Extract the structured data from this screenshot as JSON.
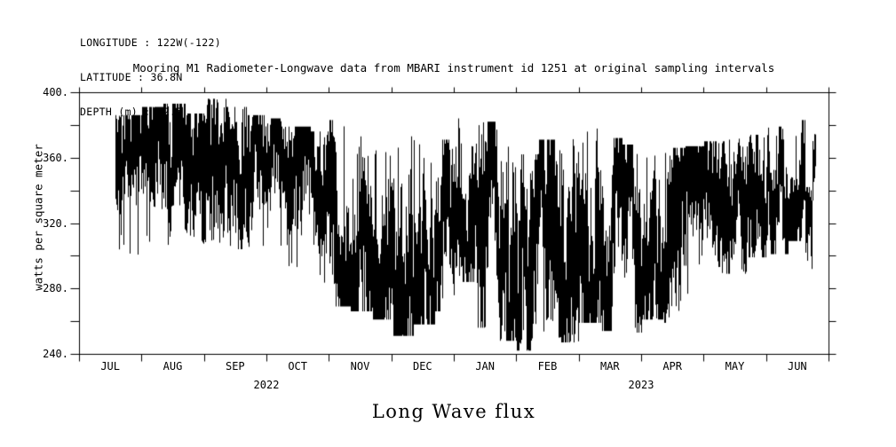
{
  "header": {
    "lines": [
      "LONGITUDE : 122W(-122)",
      "LATITUDE : 36.8N",
      "DEPTH (m) : -2.5"
    ]
  },
  "chart_data": {
    "type": "line",
    "title": "Mooring M1 Radiometer-Longwave data from MBARI instrument id 1251 at original sampling intervals",
    "ylabel": "watts per square meter",
    "caption": "Long Wave flux",
    "ylim": [
      240,
      400
    ],
    "y_major_step": 40,
    "y_minor_step": 20,
    "y_tick_labels": [
      "240.",
      "280.",
      "320.",
      "360.",
      "400."
    ],
    "y_tick_values": [
      240,
      280,
      320,
      360,
      400
    ],
    "x_months": [
      "JUL",
      "AUG",
      "SEP",
      "OCT",
      "NOV",
      "DEC",
      "JAN",
      "FEB",
      "MAR",
      "APR",
      "MAY",
      "JUN"
    ],
    "x_years": [
      {
        "label": "2022",
        "center_month_index": 3
      },
      {
        "label": "2023",
        "center_month_index": 9
      }
    ],
    "grid": false,
    "legend": "none",
    "line_color": "#000000",
    "background": "#ffffff",
    "series": [
      {
        "name": "longwave_flux",
        "units": "watts per square meter",
        "t_start_months": 0.57,
        "t_end_months": 11.79,
        "envelope_format": [
          "t_start_month",
          "t_end_month",
          "min_wm2",
          "max_wm2",
          "bulk_position_0to1"
        ],
        "envelope": [
          [
            0.57,
            1.0,
            296,
            386,
            0.72
          ],
          [
            1.0,
            1.35,
            302,
            391,
            0.72
          ],
          [
            1.35,
            1.7,
            306,
            393,
            0.7
          ],
          [
            1.7,
            2.0,
            300,
            387,
            0.68
          ],
          [
            2.0,
            2.35,
            308,
            396,
            0.72
          ],
          [
            2.35,
            2.7,
            304,
            391,
            0.66
          ],
          [
            2.7,
            3.0,
            300,
            386,
            0.7
          ],
          [
            3.0,
            3.35,
            304,
            384,
            0.7
          ],
          [
            3.35,
            3.7,
            288,
            379,
            0.55
          ],
          [
            3.7,
            4.0,
            279,
            376,
            0.4
          ],
          [
            4.0,
            4.35,
            269,
            383,
            0.28
          ],
          [
            4.35,
            4.7,
            266,
            373,
            0.3
          ],
          [
            4.7,
            5.0,
            261,
            371,
            0.3
          ],
          [
            5.0,
            5.35,
            251,
            374,
            0.32
          ],
          [
            5.35,
            5.7,
            258,
            376,
            0.35
          ],
          [
            5.7,
            6.0,
            266,
            371,
            0.4
          ],
          [
            6.0,
            6.35,
            284,
            384,
            0.68
          ],
          [
            6.35,
            6.7,
            256,
            382,
            0.5
          ],
          [
            6.7,
            7.0,
            248,
            371,
            0.4
          ],
          [
            7.0,
            7.35,
            242,
            362,
            0.45
          ],
          [
            7.35,
            7.7,
            250,
            371,
            0.45
          ],
          [
            7.7,
            8.0,
            247,
            375,
            0.45
          ],
          [
            8.0,
            8.35,
            259,
            378,
            0.52
          ],
          [
            8.35,
            8.7,
            254,
            372,
            0.5
          ],
          [
            8.7,
            9.0,
            253,
            368,
            0.48
          ],
          [
            9.0,
            9.35,
            261,
            369,
            0.5
          ],
          [
            9.35,
            9.7,
            259,
            366,
            0.5
          ],
          [
            9.7,
            10.0,
            270,
            367,
            0.55
          ],
          [
            10.0,
            10.35,
            283,
            370,
            0.58
          ],
          [
            10.35,
            10.7,
            289,
            372,
            0.62
          ],
          [
            10.7,
            11.0,
            299,
            374,
            0.65
          ],
          [
            11.0,
            11.35,
            301,
            379,
            0.65
          ],
          [
            11.35,
            11.62,
            309,
            383,
            0.68
          ],
          [
            11.62,
            11.74,
            281,
            342,
            0.35
          ],
          [
            11.74,
            11.79,
            338,
            377,
            0.75
          ]
        ]
      }
    ]
  }
}
